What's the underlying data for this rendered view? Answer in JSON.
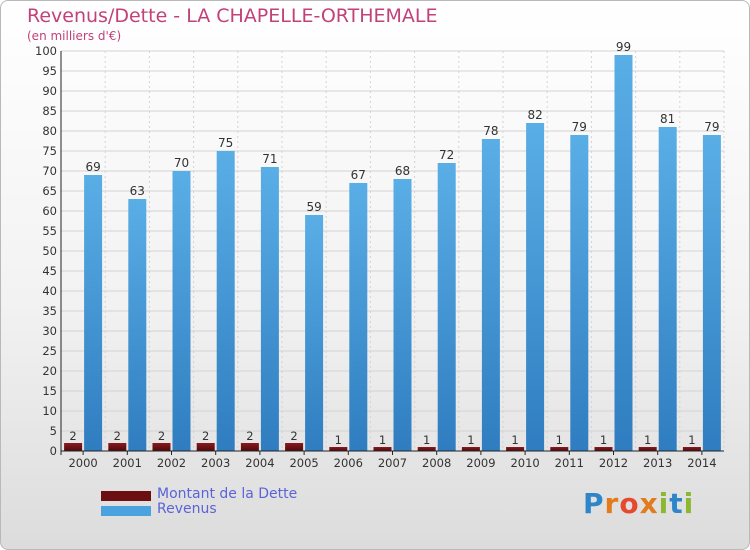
{
  "title": "Revenus/Dette - LA CHAPELLE-ORTHEMALE",
  "subtitle": "(en milliers d'€)",
  "logo_text": "Proxiti",
  "colors": {
    "revenus": "#4aa3df",
    "dette": "#6b0f12",
    "title": "#c2417a",
    "legend_text": "#5b63d8"
  },
  "chart_data": {
    "type": "bar",
    "title": "Revenus/Dette - LA CHAPELLE-ORTHEMALE",
    "ylabel": "(en milliers d'€)",
    "xlabel": "",
    "ylim": [
      0,
      100
    ],
    "yticks": [
      0,
      5,
      10,
      15,
      20,
      25,
      30,
      35,
      40,
      45,
      50,
      55,
      60,
      65,
      70,
      75,
      80,
      85,
      90,
      95,
      100
    ],
    "grid": true,
    "legend_position": "bottom-left",
    "categories": [
      "2000",
      "2001",
      "2002",
      "2003",
      "2004",
      "2005",
      "2006",
      "2007",
      "2008",
      "2009",
      "2010",
      "2011",
      "2012",
      "2013",
      "2014"
    ],
    "series": [
      {
        "name": "Montant de la Dette",
        "values": [
          2,
          2,
          2,
          2,
          2,
          2,
          1,
          1,
          1,
          1,
          1,
          1,
          1,
          1,
          1
        ]
      },
      {
        "name": "Revenus",
        "values": [
          69,
          63,
          70,
          75,
          71,
          59,
          67,
          68,
          72,
          78,
          82,
          79,
          99,
          81,
          79
        ]
      }
    ]
  }
}
